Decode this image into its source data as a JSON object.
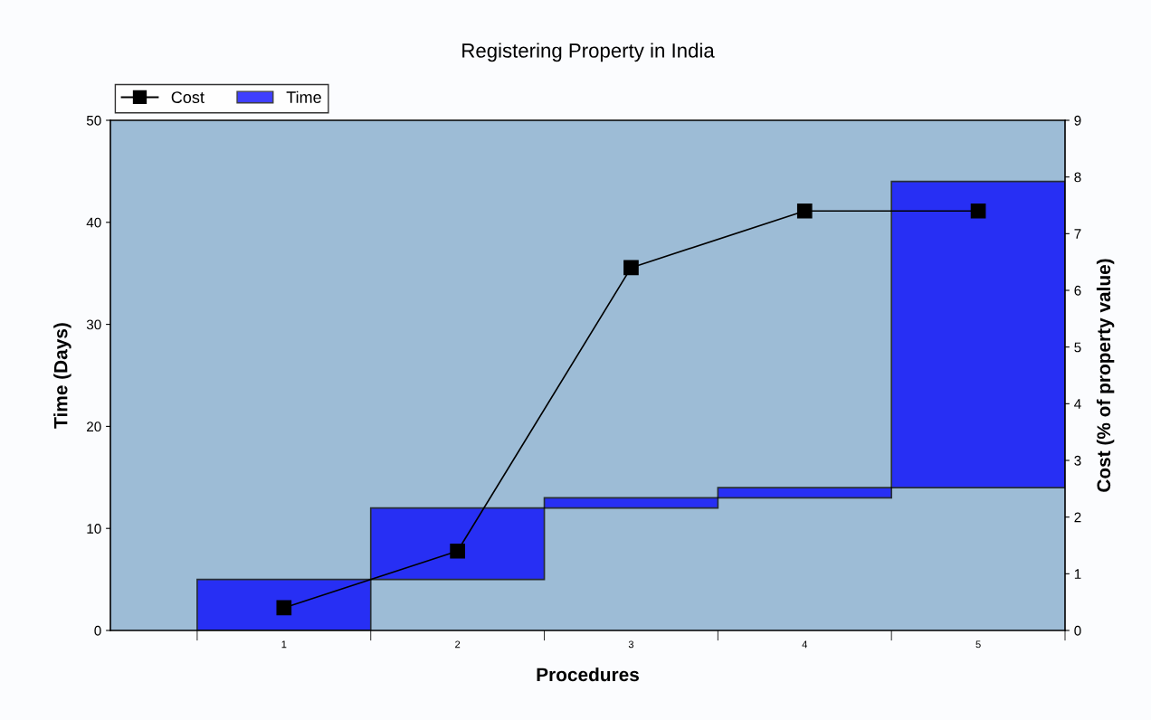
{
  "chart_data": {
    "type": "bar",
    "title": "Registering Property in India",
    "xlabel": "Procedures",
    "ylabel": "Time (Days)",
    "y2label": "Cost (% of property value)",
    "categories": [
      "1",
      "2",
      "3",
      "4",
      "5"
    ],
    "series": [
      {
        "name": "Time",
        "color": "#0000ff",
        "base": [
          0,
          5,
          12,
          13,
          14
        ],
        "values": [
          5,
          7,
          1,
          1,
          30
        ]
      },
      {
        "name": "Cost",
        "type": "line",
        "axis": "y2",
        "color": "#000000",
        "marker": "square",
        "values": [
          0.4,
          1.4,
          6.4,
          7.4,
          7.4
        ]
      }
    ],
    "ylim": [
      0,
      50
    ],
    "yticks": [
      0,
      10,
      20,
      30,
      40,
      50
    ],
    "y2lim": [
      0,
      9
    ],
    "y2ticks": [
      0,
      1,
      2,
      3,
      4,
      5,
      6,
      7,
      8,
      9
    ],
    "grid": false,
    "legend": "top left"
  }
}
